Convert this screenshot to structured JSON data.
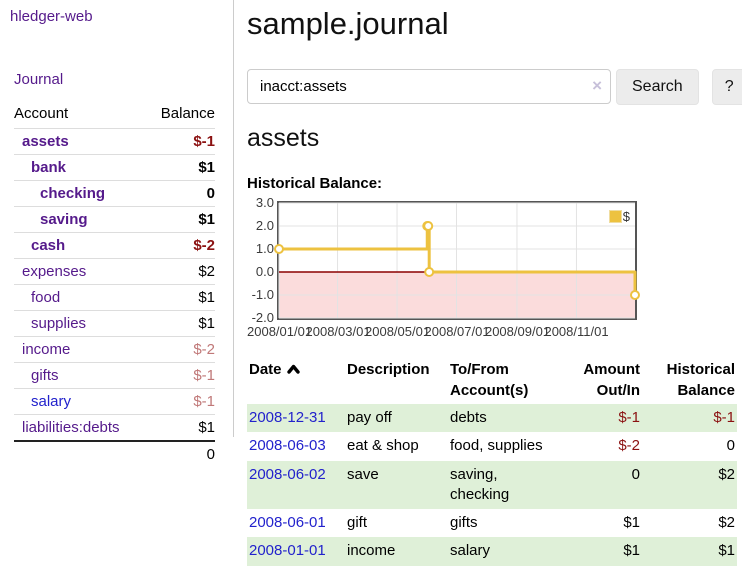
{
  "sidebar": {
    "brand": "hledger-web",
    "nav_journal": "Journal",
    "accounts_table": {
      "headers": [
        "Account",
        "Balance"
      ],
      "rows": [
        {
          "name": "assets",
          "balance": "$-1",
          "level": 1,
          "bold": true,
          "balance_class": "neg-strong"
        },
        {
          "name": "bank",
          "balance": "$1",
          "level": 2,
          "bold": true,
          "balance_class": "plain"
        },
        {
          "name": "checking",
          "balance": "0",
          "level": 3,
          "bold": true,
          "balance_class": "plain"
        },
        {
          "name": "saving",
          "balance": "$1",
          "level": 3,
          "bold": true,
          "balance_class": "plain"
        },
        {
          "name": "cash",
          "balance": "$-2",
          "level": 2,
          "bold": true,
          "balance_class": "neg-strong"
        },
        {
          "name": "expenses",
          "balance": "$2",
          "level": 1,
          "bold": false,
          "balance_class": "plain"
        },
        {
          "name": "food",
          "balance": "$1",
          "level": 2,
          "bold": false,
          "balance_class": "plain"
        },
        {
          "name": "supplies",
          "balance": "$1",
          "level": 2,
          "bold": false,
          "balance_class": "plain"
        },
        {
          "name": "income",
          "balance": "$-2",
          "level": 1,
          "bold": false,
          "balance_class": "neg-soft"
        },
        {
          "name": "gifts",
          "balance": "$-1",
          "level": 2,
          "bold": false,
          "balance_class": "neg-soft"
        },
        {
          "name": "salary",
          "balance": "$-1",
          "level": 2,
          "bold": false,
          "balance_class": "neg-soft",
          "link_class": "unvisited"
        },
        {
          "name": "liabilities:debts",
          "balance": "$1",
          "level": 1,
          "bold": false,
          "balance_class": "plain"
        }
      ],
      "total": "0"
    }
  },
  "main": {
    "title": "sample.journal",
    "search": {
      "value": "inacct:assets",
      "clear_icon": "×",
      "button": "Search",
      "help_button": "?"
    },
    "account_heading": "assets",
    "chart_label": "Historical Balance:",
    "register": {
      "headers": [
        "Date",
        "Description",
        "To/From Account(s)",
        "Amount Out/In",
        "Historical Balance"
      ],
      "sorted_column": "Date",
      "sort_direction": "asc",
      "rows": [
        {
          "date": "2008-12-31",
          "description": "pay off",
          "accounts": "debts",
          "amount": "$-1",
          "balance": "$-1"
        },
        {
          "date": "2008-06-03",
          "description": "eat & shop",
          "accounts": "food, supplies",
          "amount": "$-2",
          "balance": "0"
        },
        {
          "date": "2008-06-02",
          "description": "save",
          "accounts": "saving, checking",
          "amount": "0",
          "balance": "$2"
        },
        {
          "date": "2008-06-01",
          "description": "gift",
          "accounts": "gifts",
          "amount": "$1",
          "balance": "$2"
        },
        {
          "date": "2008-01-01",
          "description": "income",
          "accounts": "salary",
          "amount": "$1",
          "balance": "$1"
        }
      ]
    }
  },
  "chart_data": {
    "type": "line",
    "step": true,
    "title": "Historical Balance",
    "series": [
      {
        "name": "$",
        "color": "#edc240",
        "points": [
          [
            "2008-01-01",
            1
          ],
          [
            "2008-06-01",
            2
          ],
          [
            "2008-06-02",
            2
          ],
          [
            "2008-06-03",
            0
          ],
          [
            "2008-12-31",
            -1
          ]
        ]
      }
    ],
    "x_ticks": [
      "2008/01/01",
      "2008/03/01",
      "2008/05/01",
      "2008/07/01",
      "2008/09/01",
      "2008/11/01"
    ],
    "y_ticks": [
      3.0,
      2.0,
      1.0,
      0.0,
      -1.0,
      -2.0
    ],
    "xlim": [
      "2008-01-01",
      "2008-12-31"
    ],
    "ylim": [
      -2,
      3
    ],
    "grid": true,
    "legend": {
      "label": "$",
      "position": "top-right"
    },
    "negative_region_color": "#fbdcdc",
    "zero_line_color": "#8b0000",
    "grid_color": "#e3e3e3"
  },
  "colors": {
    "link_purple": "#551a8b",
    "link_blue": "#2222cc",
    "negative_strong": "#8b1111",
    "negative_soft": "#c07878",
    "row_green": "#dff0d8",
    "chart_line_gold": "#edc240"
  }
}
